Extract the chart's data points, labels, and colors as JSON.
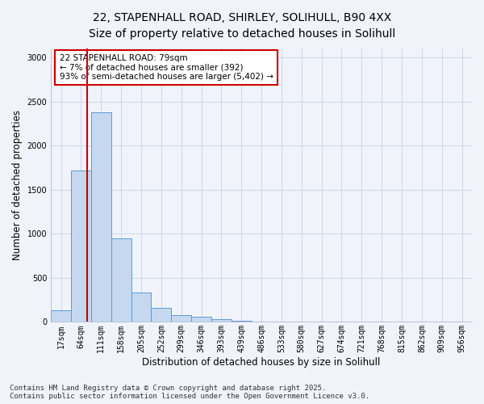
{
  "title_line1": "22, STAPENHALL ROAD, SHIRLEY, SOLIHULL, B90 4XX",
  "title_line2": "Size of property relative to detached houses in Solihull",
  "xlabel": "Distribution of detached houses by size in Solihull",
  "ylabel": "Number of detached properties",
  "bin_labels": [
    "17sqm",
    "64sqm",
    "111sqm",
    "158sqm",
    "205sqm",
    "252sqm",
    "299sqm",
    "346sqm",
    "393sqm",
    "439sqm",
    "486sqm",
    "533sqm",
    "580sqm",
    "627sqm",
    "674sqm",
    "721sqm",
    "768sqm",
    "815sqm",
    "862sqm",
    "909sqm",
    "956sqm"
  ],
  "bar_heights": [
    130,
    1720,
    2380,
    950,
    330,
    155,
    80,
    55,
    35,
    15,
    8,
    0,
    0,
    0,
    0,
    0,
    0,
    0,
    0,
    0,
    0
  ],
  "bar_color": "#c5d8f0",
  "bar_edge_color": "#5b9bd5",
  "annotation_text": "22 STAPENHALL ROAD: 79sqm\n← 7% of detached houses are smaller (392)\n93% of semi-detached houses are larger (5,402) →",
  "annotation_box_color": "#ffffff",
  "annotation_box_edge": "#cc0000",
  "red_line_color": "#cc0000",
  "grid_color": "#d0d8e8",
  "background_color": "#f0f4fa",
  "footer_text": "Contains HM Land Registry data © Crown copyright and database right 2025.\nContains public sector information licensed under the Open Government Licence v3.0.",
  "ylim": [
    0,
    3100
  ],
  "yticks": [
    0,
    500,
    1000,
    1500,
    2000,
    2500,
    3000
  ],
  "title_fontsize": 10,
  "axis_label_fontsize": 8.5,
  "tick_fontsize": 7,
  "footer_fontsize": 6.5
}
